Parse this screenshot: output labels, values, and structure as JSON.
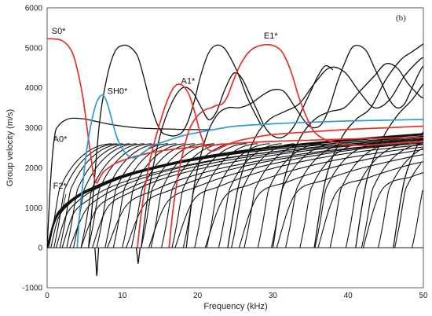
{
  "chart_data": {
    "type": "line",
    "title": "",
    "panel_label": "(b)",
    "xlabel": "Frequency (kHz)",
    "ylabel": "Group velocity (m/s)",
    "xlim": [
      0,
      50
    ],
    "ylim": [
      -1000,
      6000
    ],
    "x_ticks": [
      0,
      10,
      20,
      30,
      40,
      50
    ],
    "y_ticks": [
      -1000,
      0,
      1000,
      2000,
      3000,
      4000,
      5000,
      6000
    ],
    "grid": false,
    "colors": {
      "black": "#111111",
      "red": "#e8302a",
      "blue": "#2f9bd6"
    },
    "annotations": [
      {
        "text": "S0*",
        "x": 0.6,
        "y": 5350
      },
      {
        "text": "SH0*",
        "x": 8.0,
        "y": 3850
      },
      {
        "text": "A1*",
        "x": 17.8,
        "y": 4100
      },
      {
        "text": "E1*",
        "x": 28.8,
        "y": 5230
      },
      {
        "text": "A0*",
        "x": 0.8,
        "y": 2650
      },
      {
        "text": "F2*",
        "x": 0.8,
        "y": 1480
      }
    ],
    "highlighted_series": [
      {
        "name": "S0*",
        "color": "red",
        "x": [
          0,
          1,
          2,
          3,
          3.6,
          4.2,
          4.8,
          5.3,
          5.8,
          6.2,
          6.6,
          7.0,
          7.5,
          8.2,
          9,
          10,
          12,
          15,
          20,
          25,
          30,
          35,
          40,
          45,
          50
        ],
        "y": [
          5230,
          5220,
          5180,
          5000,
          4750,
          4300,
          3700,
          3000,
          2300,
          1800,
          1620,
          1750,
          1900,
          2000,
          2100,
          2180,
          2300,
          2420,
          2530,
          2610,
          2660,
          2690,
          2720,
          2740,
          2760
        ]
      },
      {
        "name": "SH0*",
        "color": "blue",
        "x": [
          4.0,
          4.3,
          4.8,
          5.3,
          5.9,
          6.5,
          7.1,
          7.6,
          8.1,
          8.6,
          9.2,
          9.9,
          10.6,
          11.3,
          12.0,
          12.6,
          13.3,
          14,
          16,
          18,
          20,
          22,
          25,
          30,
          35,
          40,
          45,
          50
        ],
        "y": [
          0,
          800,
          1700,
          2500,
          3150,
          3600,
          3800,
          3780,
          3550,
          3200,
          2800,
          2500,
          2330,
          2250,
          2270,
          2350,
          2450,
          2550,
          2680,
          2800,
          2880,
          2950,
          3040,
          3100,
          3140,
          3170,
          3190,
          3210
        ]
      },
      {
        "name": "A1*",
        "color": "red",
        "x": [
          12.0,
          12.4,
          13.0,
          13.8,
          14.8,
          15.8,
          16.8,
          17.8,
          18.8,
          19.6,
          20.3,
          21.0,
          21.8,
          22.6,
          23.3,
          24.2,
          25.5,
          27,
          30,
          35,
          40,
          45,
          50
        ],
        "y": [
          0,
          700,
          1500,
          2300,
          3000,
          3600,
          4000,
          4080,
          3850,
          3400,
          2900,
          2550,
          2420,
          2450,
          2520,
          2600,
          2680,
          2740,
          2830,
          2900,
          2960,
          3000,
          3040
        ]
      },
      {
        "name": "E1*",
        "color": "red",
        "x": [
          16.2,
          16.7,
          17.4,
          18.2,
          19.0,
          20.0,
          21.0,
          21.8,
          22.5,
          23.3,
          24.0,
          24.8,
          25.6,
          26.4,
          27.2,
          28.0,
          29.0,
          30.0,
          31.0,
          31.8,
          32.6,
          33.4,
          34.4,
          35.5,
          37,
          39,
          41,
          44,
          47,
          50
        ],
        "y": [
          0,
          900,
          1800,
          2500,
          3000,
          3300,
          3450,
          3500,
          3560,
          3600,
          3800,
          4200,
          4550,
          4800,
          4960,
          5040,
          5080,
          5060,
          4950,
          4700,
          4300,
          3800,
          3300,
          2900,
          2700,
          2600,
          2560,
          2580,
          2620,
          2650
        ]
      }
    ],
    "mode_families": {
      "steep_branch_cutoffs_khz": [
        0.2,
        0.9,
        1.7,
        2.6,
        3.5,
        4.5,
        5.5,
        6.6,
        7.7,
        8.8,
        10.0,
        11.2,
        12.5,
        13.8,
        15.2,
        16.6,
        18.1,
        19.6,
        21.2,
        22.8,
        24.5,
        26.2,
        28.0,
        29.8,
        31.7,
        33.6,
        35.6,
        37.6,
        39.7,
        41.8,
        44.0,
        46.2,
        48.5
      ],
      "steep_branch_slope": 1600,
      "steep_branch_velocity_cap": 2600,
      "dense_band_series": [
        {
          "x": [
            0,
            1,
            2,
            4,
            6,
            10,
            15,
            20,
            25,
            30,
            40,
            50
          ],
          "y": [
            0,
            700,
            1000,
            1300,
            1500,
            1800,
            2050,
            2250,
            2400,
            2520,
            2700,
            2850
          ]
        },
        {
          "x": [
            0,
            1,
            2,
            4,
            6,
            10,
            15,
            20,
            25,
            30,
            40,
            50
          ],
          "y": [
            0,
            650,
            950,
            1260,
            1460,
            1770,
            2020,
            2220,
            2375,
            2500,
            2680,
            2830
          ]
        },
        {
          "x": [
            0.5,
            1.5,
            3,
            5,
            8,
            12,
            18,
            25,
            32,
            40,
            50
          ],
          "y": [
            0,
            750,
            1100,
            1400,
            1650,
            1900,
            2150,
            2350,
            2500,
            2640,
            2790
          ]
        },
        {
          "x": [
            1.2,
            2.5,
            4,
            6,
            9,
            13,
            19,
            26,
            34,
            42,
            50
          ],
          "y": [
            0,
            800,
            1150,
            1420,
            1680,
            1920,
            2170,
            2370,
            2530,
            2660,
            2770
          ]
        },
        {
          "x": [
            2,
            3.5,
            5.5,
            8,
            12,
            17,
            23,
            30,
            38,
            46,
            50
          ],
          "y": [
            0,
            850,
            1200,
            1480,
            1760,
            2000,
            2220,
            2400,
            2560,
            2690,
            2740
          ]
        },
        {
          "x": [
            3,
            5,
            7,
            10,
            14,
            19,
            25,
            32,
            40,
            50
          ],
          "y": [
            0,
            900,
            1250,
            1550,
            1820,
            2060,
            2270,
            2440,
            2590,
            2720
          ]
        },
        {
          "x": [
            4.5,
            6.5,
            9,
            12,
            16,
            21,
            27,
            35,
            43,
            50
          ],
          "y": [
            0,
            950,
            1300,
            1580,
            1850,
            2080,
            2280,
            2470,
            2610,
            2700
          ]
        },
        {
          "x": [
            6,
            8,
            11,
            15,
            20,
            26,
            33,
            41,
            50
          ],
          "y": [
            0,
            1000,
            1380,
            1700,
            1960,
            2190,
            2390,
            2560,
            2690
          ]
        },
        {
          "x": [
            8,
            10.5,
            14,
            18,
            23,
            29,
            36,
            44,
            50
          ],
          "y": [
            0,
            1050,
            1420,
            1720,
            1980,
            2200,
            2400,
            2560,
            2660
          ]
        },
        {
          "x": [
            10.5,
            13,
            16.5,
            21,
            26,
            32,
            39,
            46,
            50
          ],
          "y": [
            0,
            1100,
            1450,
            1770,
            2030,
            2250,
            2440,
            2580,
            2640
          ]
        },
        {
          "x": [
            13.5,
            16,
            20,
            24.5,
            30,
            36,
            43,
            50
          ],
          "y": [
            0,
            1150,
            1530,
            1830,
            2100,
            2320,
            2500,
            2620
          ]
        },
        {
          "x": [
            17,
            19.5,
            23,
            28,
            34,
            41,
            50
          ],
          "y": [
            0,
            1200,
            1540,
            1880,
            2160,
            2390,
            2580
          ]
        },
        {
          "x": [
            21,
            23.5,
            27,
            32,
            38,
            45,
            50
          ],
          "y": [
            0,
            1250,
            1580,
            1900,
            2180,
            2400,
            2520
          ]
        },
        {
          "x": [
            25.5,
            28,
            32,
            37,
            43,
            50
          ],
          "y": [
            0,
            1300,
            1650,
            1960,
            2230,
            2460
          ]
        },
        {
          "x": [
            30.5,
            33,
            37,
            42,
            48,
            50
          ],
          "y": [
            0,
            1350,
            1700,
            2000,
            2260,
            2330
          ]
        },
        {
          "x": [
            36,
            38.5,
            42.5,
            47.5,
            50
          ],
          "y": [
            0,
            1400,
            1740,
            2040,
            2150
          ]
        },
        {
          "x": [
            42,
            44.5,
            48.5,
            50
          ],
          "y": [
            0,
            1450,
            1780,
            1880
          ]
        }
      ],
      "oscillating_series": [
        {
          "x": [
            0,
            0.5,
            1.0,
            1.5,
            2.5,
            3.5,
            5,
            6,
            8,
            10,
            12,
            14,
            16,
            18,
            20,
            22
          ],
          "y": [
            0,
            1800,
            2800,
            3050,
            3200,
            3240,
            3220,
            3180,
            3100,
            3040,
            3000,
            2980,
            2970,
            2960,
            2955,
            2950
          ]
        },
        {
          "x": [
            5.5,
            6.2,
            7.0,
            8.0,
            9.0,
            10.0,
            11.0,
            12.0,
            12.8,
            13.6,
            14.4,
            15.2,
            16.0,
            17.0,
            18.0,
            18.8,
            19.6,
            20.4,
            21.4,
            22.4,
            23.5,
            24.5,
            25.5,
            26.5,
            27.5,
            28.5
          ],
          "y": [
            0,
            1500,
            3200,
            4300,
            4900,
            5060,
            5020,
            4800,
            4300,
            3700,
            3200,
            2900,
            2820,
            2800,
            2900,
            3200,
            3700,
            4300,
            4850,
            5060,
            5000,
            4700,
            4300,
            3800,
            3400,
            3050
          ]
        },
        {
          "x": [
            12.5,
            13.5,
            15.0,
            16.5,
            18.0,
            19.3,
            20.5,
            21.5,
            22.5,
            23.5,
            24.5,
            25.2,
            26.0,
            27.0,
            28.0,
            29.0,
            30.0,
            31.0,
            32.0,
            33.0,
            34.0,
            35.0,
            36.0,
            37.0,
            38.0
          ],
          "y": [
            0,
            1400,
            2800,
            3600,
            4000,
            3900,
            3500,
            3200,
            3400,
            3900,
            4300,
            4370,
            4200,
            3800,
            3400,
            3000,
            2800,
            2750,
            2850,
            3100,
            3500,
            3900,
            4300,
            4550,
            4450
          ]
        },
        {
          "x": [
            18.5,
            19.5,
            21,
            22.5,
            24,
            25.5,
            27,
            28.5,
            30,
            31.5,
            33,
            34.5,
            35.5,
            36.5,
            37.5,
            38.5,
            39.5,
            40.5,
            41.5,
            42.5,
            43.5,
            44.5,
            45.5,
            46.5,
            47.5,
            48.5,
            49.5,
            50
          ],
          "y": [
            0,
            1500,
            2700,
            3300,
            3500,
            3500,
            3600,
            3800,
            3950,
            3900,
            3500,
            3100,
            3000,
            3100,
            3500,
            4100,
            4600,
            5000,
            5050,
            4900,
            4500,
            4100,
            3700,
            3500,
            3600,
            4000,
            4400,
            4550
          ]
        },
        {
          "x": [
            24,
            25.5,
            27.5,
            29.5,
            31.5,
            33.5,
            35.5,
            37.5,
            39.5,
            41.5,
            43.5,
            45.5,
            47.5,
            49.5,
            50
          ],
          "y": [
            0,
            1600,
            2700,
            3200,
            3400,
            3600,
            4100,
            4500,
            4400,
            3900,
            3500,
            3700,
            4300,
            4700,
            4750
          ]
        },
        {
          "x": [
            30,
            31.5,
            33.5,
            35.5,
            37.5,
            39.5,
            41.5,
            43.5,
            45,
            46.5,
            48,
            49.5,
            50
          ],
          "y": [
            0,
            1700,
            2700,
            3200,
            3400,
            3500,
            3900,
            4300,
            4600,
            4500,
            4100,
            3800,
            3750
          ]
        },
        {
          "x": [
            35.5,
            37,
            39,
            41,
            43,
            45,
            47,
            48.5,
            50
          ],
          "y": [
            0,
            1700,
            2700,
            3200,
            3500,
            4200,
            4700,
            4900,
            5100
          ]
        },
        {
          "x": [
            41,
            42.5,
            44.5,
            46.5,
            48.5,
            50
          ],
          "y": [
            0,
            1700,
            2700,
            3300,
            3700,
            4100
          ]
        },
        {
          "x": [
            46,
            47.5,
            49.5,
            50
          ],
          "y": [
            0,
            1700,
            2700,
            2900
          ]
        }
      ],
      "negative_spikes": [
        {
          "x": 6.6,
          "y": -700
        },
        {
          "x": 12.1,
          "y": -400
        }
      ]
    }
  }
}
